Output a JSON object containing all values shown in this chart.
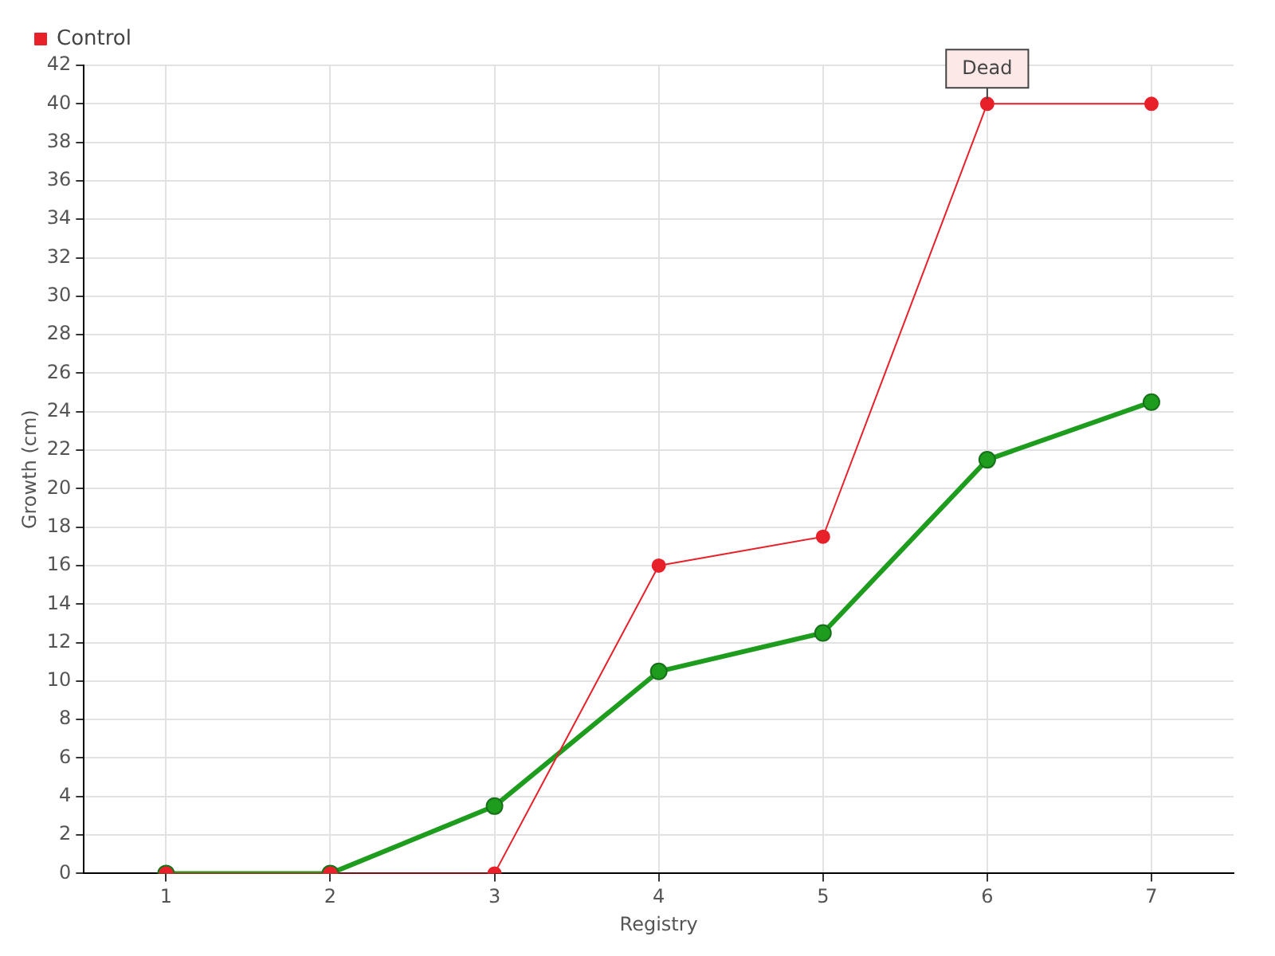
{
  "chart_data": {
    "type": "line",
    "xlabel": "Registry",
    "ylabel": "Growth (cm)",
    "x": [
      1,
      2,
      3,
      4,
      5,
      6,
      7
    ],
    "series": [
      {
        "color": "#1e9c1e",
        "values": [
          0,
          0,
          3.5,
          10.5,
          12.5,
          21.5,
          24.5
        ]
      },
      {
        "name": "Control",
        "color": "#e8202a",
        "values": [
          0,
          0,
          0,
          16,
          17.5,
          40,
          40
        ]
      }
    ],
    "xlim": [
      0.5,
      7.5
    ],
    "xticks": [
      1,
      2,
      3,
      4,
      5,
      6,
      7
    ],
    "ylim": [
      0,
      42
    ],
    "yticks": [
      0,
      2,
      4,
      6,
      8,
      10,
      12,
      14,
      16,
      18,
      20,
      22,
      24,
      26,
      28,
      30,
      32,
      34,
      36,
      38,
      40,
      42
    ],
    "annotations": [
      {
        "text": "Dead",
        "x": 6,
        "y": 40
      }
    ],
    "grid": true,
    "legend": "top left",
    "marker": "circle",
    "line_style": "solid"
  }
}
